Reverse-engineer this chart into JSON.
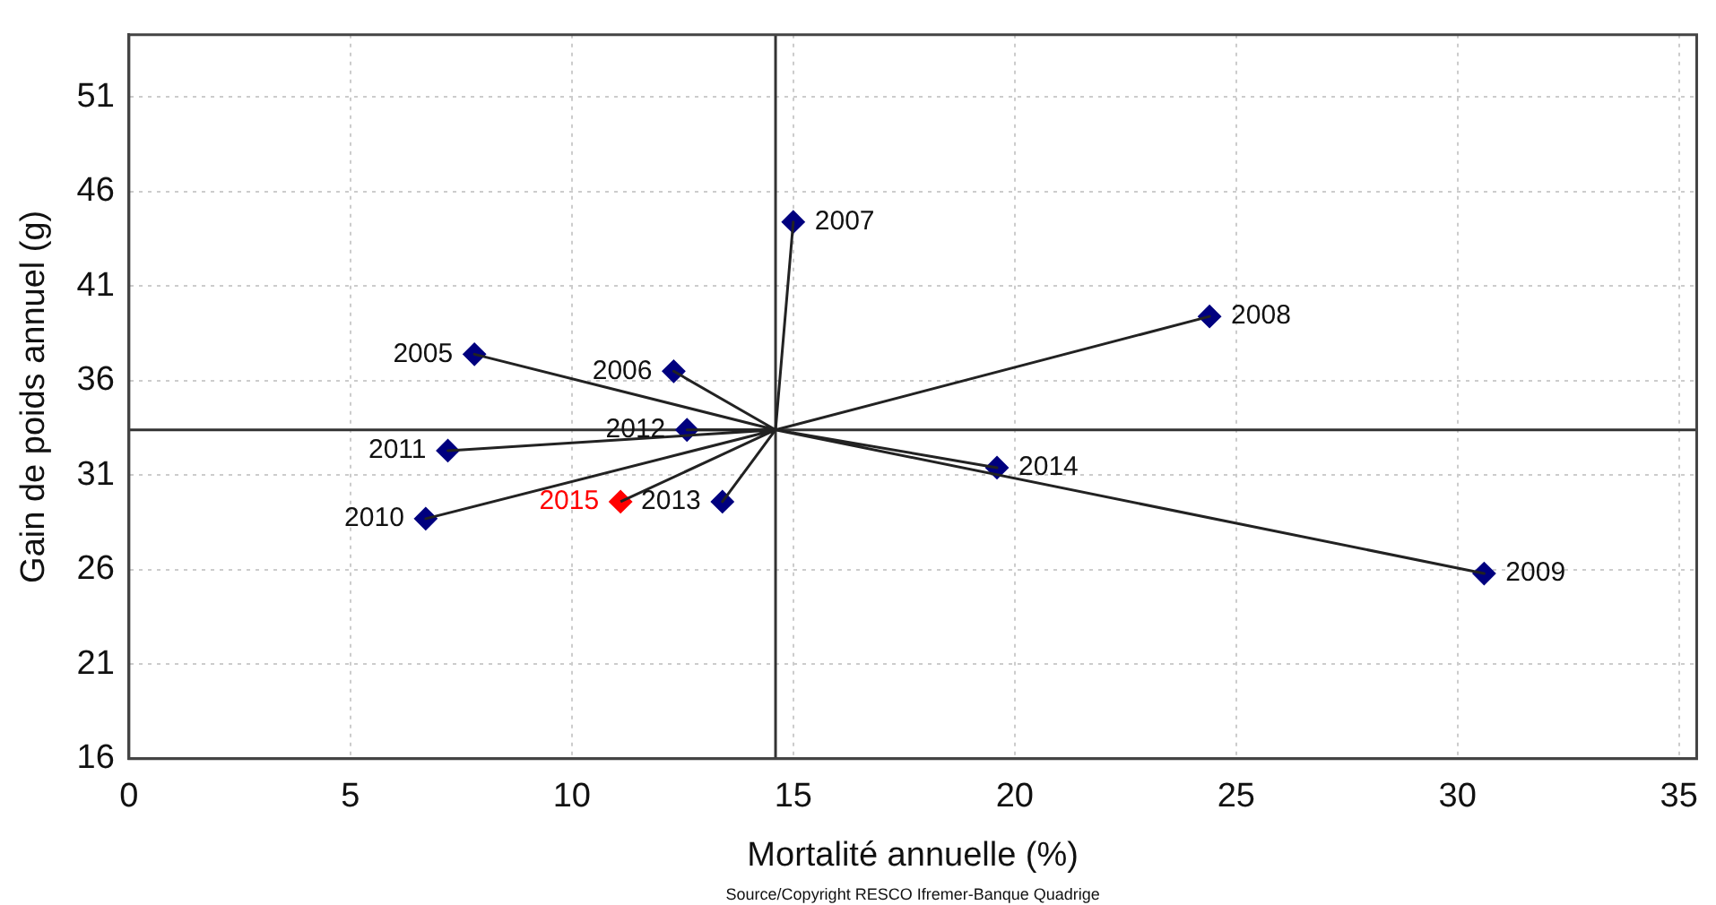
{
  "chart_data": {
    "type": "scatter",
    "xlabel": "Mortalité annuelle (%)",
    "ylabel": "Gain de poids annuel (g)",
    "annotations": [
      "Source/Copyright RESCO Ifremer-Banque Quadrige",
      {
        "text": "2005",
        "x": 7.8,
        "y": 37.4
      },
      {
        "text": "2006",
        "x": 12.3,
        "y": 36.5
      },
      {
        "text": "2007",
        "x": 15.0,
        "y": 44.4
      },
      {
        "text": "2008",
        "x": 24.4,
        "y": 39.4
      },
      {
        "text": "2009",
        "x": 30.6,
        "y": 25.8
      },
      {
        "text": "2010",
        "x": 6.7,
        "y": 28.7
      },
      {
        "text": "2011",
        "x": 7.2,
        "y": 32.3
      },
      {
        "text": "2012",
        "x": 12.6,
        "y": 33.4
      },
      {
        "text": "2013",
        "x": 13.4,
        "y": 29.6
      },
      {
        "text": "2014",
        "x": 19.6,
        "y": 31.4
      },
      {
        "text": "2015",
        "x": 11.1,
        "y": 29.6
      }
    ],
    "xlim": [
      0,
      35.4
    ],
    "xticks": [
      0,
      5,
      10,
      15,
      20,
      25,
      30,
      35
    ],
    "ylim": [
      16,
      54.3
    ],
    "yticks": [
      16,
      21,
      26,
      31,
      36,
      41,
      46,
      51
    ],
    "grid": true,
    "marker": "diamond",
    "ref_lines": [
      {
        "axis": "x",
        "value": 14.6,
        "color": "#333333"
      },
      {
        "axis": "y",
        "value": 33.4,
        "color": "#333333"
      }
    ],
    "series": [
      {
        "type": "line",
        "color": "#222222",
        "marker": "none",
        "x": [
          14.6,
          7.8,
          14.6,
          12.3,
          14.6,
          15.0,
          14.6,
          24.4,
          14.6,
          30.6,
          14.6,
          6.7,
          14.6,
          7.2,
          14.6,
          12.6,
          14.6,
          13.4,
          14.6,
          19.6,
          14.6,
          11.1
        ],
        "values": [
          33.4,
          37.4,
          33.4,
          36.5,
          33.4,
          44.4,
          33.4,
          39.4,
          33.4,
          25.8,
          33.4,
          28.7,
          33.4,
          32.3,
          33.4,
          33.4,
          33.4,
          29.6,
          33.4,
          31.4,
          33.4,
          29.6
        ]
      },
      {
        "type": "scatter",
        "x": [
          7.8,
          12.3,
          15.0,
          24.4,
          30.6,
          6.7,
          7.2,
          12.6,
          13.4,
          19.6,
          11.1
        ],
        "values": [
          37.4,
          36.5,
          44.4,
          39.4,
          25.8,
          28.7,
          32.3,
          33.4,
          29.6,
          31.4,
          29.6
        ],
        "colors": [
          "#00007f",
          "#00007f",
          "#00007f",
          "#00007f",
          "#00007f",
          "#00007f",
          "#00007f",
          "#00007f",
          "#00007f",
          "#00007f",
          "#ff0000"
        ]
      }
    ]
  }
}
